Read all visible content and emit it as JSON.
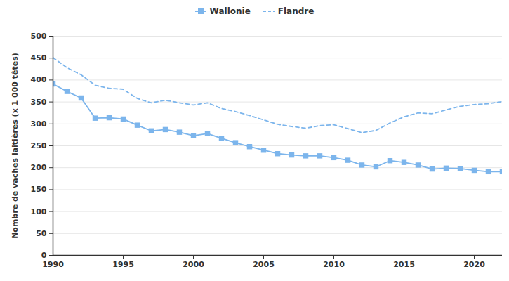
{
  "chart_data": {
    "type": "line",
    "y_label": "Nombre de vaches laitières (x 1 000 têtes)",
    "x": [
      1990,
      1991,
      1992,
      1993,
      1994,
      1995,
      1996,
      1997,
      1998,
      1999,
      2000,
      2001,
      2002,
      2003,
      2004,
      2005,
      2006,
      2007,
      2008,
      2009,
      2010,
      2011,
      2012,
      2013,
      2014,
      2015,
      2016,
      2017,
      2018,
      2019,
      2020,
      2021,
      2022
    ],
    "series": [
      {
        "name": "Wallonie",
        "color": "#7cb5ec",
        "marker": "square",
        "line_style": "solid",
        "values": [
          391,
          374,
          359,
          313,
          314,
          311,
          297,
          284,
          287,
          281,
          273,
          278,
          267,
          257,
          248,
          240,
          232,
          229,
          227,
          227,
          223,
          217,
          206,
          202,
          216,
          212,
          206,
          197,
          199,
          198,
          194,
          191,
          191
        ]
      },
      {
        "name": "Flandre",
        "color": "#7cb5ec",
        "marker": "none",
        "line_style": "dashed",
        "values": [
          451,
          428,
          412,
          388,
          381,
          379,
          358,
          348,
          354,
          348,
          343,
          348,
          335,
          328,
          319,
          309,
          299,
          294,
          290,
          296,
          298,
          289,
          280,
          285,
          302,
          316,
          325,
          323,
          332,
          340,
          344,
          346,
          351
        ]
      }
    ],
    "xlim": [
      1990,
      2022
    ],
    "xticks": [
      1990,
      1995,
      2000,
      2005,
      2010,
      2015,
      2020
    ],
    "ylim": [
      0,
      500
    ],
    "yticks": [
      0,
      50,
      100,
      150,
      200,
      250,
      300,
      350,
      400,
      450,
      500
    ],
    "grid": true,
    "legend": "top"
  }
}
